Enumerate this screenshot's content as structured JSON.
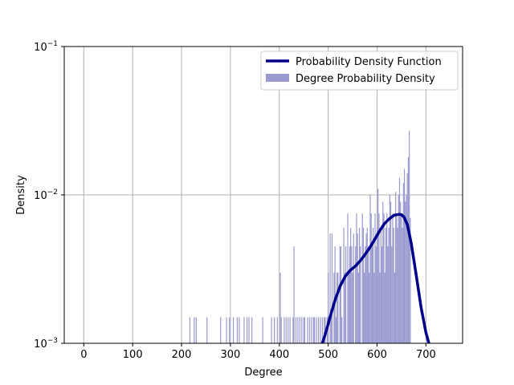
{
  "chart_data": {
    "type": "bar",
    "title": "",
    "xlabel": "Degree",
    "ylabel": "Density",
    "xlim": [
      -40,
      775
    ],
    "ylim": [
      0.001,
      0.1
    ],
    "yscale": "log",
    "grid": true,
    "legend_position": "top-right",
    "x_ticks": [
      0,
      100,
      200,
      300,
      400,
      500,
      600,
      700
    ],
    "y_ticks": [
      {
        "value": 0.001,
        "base": "10",
        "exp": "−3"
      },
      {
        "value": 0.01,
        "base": "10",
        "exp": "−2"
      },
      {
        "value": 0.1,
        "base": "10",
        "exp": "−1"
      }
    ],
    "series": [
      {
        "name": "Probability Density Function",
        "kind": "line",
        "color": "#00008b",
        "x": [
          488,
          495,
          505,
          515,
          525,
          535,
          545,
          555,
          565,
          575,
          585,
          595,
          605,
          615,
          625,
          635,
          645,
          650,
          655,
          662,
          670,
          680,
          690,
          700,
          706
        ],
        "y": [
          0.001,
          0.00118,
          0.00155,
          0.002,
          0.00245,
          0.00283,
          0.0031,
          0.0033,
          0.00358,
          0.00395,
          0.0044,
          0.005,
          0.0057,
          0.0064,
          0.0069,
          0.0073,
          0.0074,
          0.00735,
          0.0071,
          0.0063,
          0.0047,
          0.0029,
          0.00175,
          0.00118,
          0.001
        ]
      },
      {
        "name": "Degree Probability Density",
        "kind": "bar",
        "color": "#9a9ad0",
        "x": [
          217,
          226,
          230,
          252,
          280,
          292,
          298,
          306,
          314,
          318,
          328,
          334,
          338,
          344,
          366,
          384,
          390,
          396,
          402,
          404,
          410,
          414,
          418,
          422,
          428,
          430,
          434,
          438,
          442,
          446,
          450,
          452,
          458,
          462,
          466,
          470,
          472,
          476,
          480,
          484,
          488,
          492,
          494,
          498,
          500,
          504,
          506,
          508,
          512,
          514,
          516,
          518,
          520,
          524,
          526,
          528,
          532,
          534,
          536,
          540,
          542,
          544,
          546,
          548,
          550,
          552,
          556,
          558,
          560,
          562,
          564,
          566,
          570,
          572,
          574,
          576,
          578,
          580,
          582,
          584,
          586,
          588,
          590,
          592,
          594,
          596,
          598,
          600,
          602,
          604,
          606,
          608,
          610,
          612,
          614,
          616,
          618,
          620,
          622,
          624,
          626,
          628,
          630,
          632,
          634,
          636,
          638,
          640,
          642,
          644,
          646,
          648,
          650,
          652,
          654,
          656,
          658,
          660,
          662,
          664,
          666,
          668
        ],
        "y": [
          0.0015,
          0.0015,
          0.0015,
          0.0015,
          0.0015,
          0.0015,
          0.0015,
          0.0015,
          0.0015,
          0.0015,
          0.0015,
          0.0015,
          0.0015,
          0.0015,
          0.0015,
          0.0015,
          0.0015,
          0.0015,
          0.003,
          0.0015,
          0.0015,
          0.0015,
          0.0015,
          0.0015,
          0.0015,
          0.0045,
          0.0015,
          0.0015,
          0.0015,
          0.0015,
          0.0015,
          0.0015,
          0.0015,
          0.0015,
          0.0015,
          0.0015,
          0.0015,
          0.0015,
          0.0015,
          0.0015,
          0.0015,
          0.0015,
          0.0015,
          0.0015,
          0.003,
          0.0055,
          0.0015,
          0.0055,
          0.003,
          0.0045,
          0.0015,
          0.003,
          0.003,
          0.0045,
          0.0045,
          0.0015,
          0.006,
          0.003,
          0.0045,
          0.0075,
          0.003,
          0.0045,
          0.006,
          0.0045,
          0.003,
          0.0055,
          0.0045,
          0.0075,
          0.0055,
          0.003,
          0.006,
          0.0045,
          0.0075,
          0.006,
          0.003,
          0.0045,
          0.0055,
          0.006,
          0.0045,
          0.003,
          0.01,
          0.0075,
          0.0045,
          0.006,
          0.003,
          0.0075,
          0.0045,
          0.006,
          0.011,
          0.0075,
          0.003,
          0.006,
          0.0045,
          0.009,
          0.0075,
          0.003,
          0.006,
          0.0075,
          0.0045,
          0.006,
          0.01,
          0.009,
          0.0045,
          0.0075,
          0.006,
          0.003,
          0.0105,
          0.0075,
          0.006,
          0.01,
          0.013,
          0.009,
          0.0075,
          0.006,
          0.012,
          0.015,
          0.009,
          0.01,
          0.014,
          0.018,
          0.027,
          0.007
        ]
      }
    ]
  }
}
